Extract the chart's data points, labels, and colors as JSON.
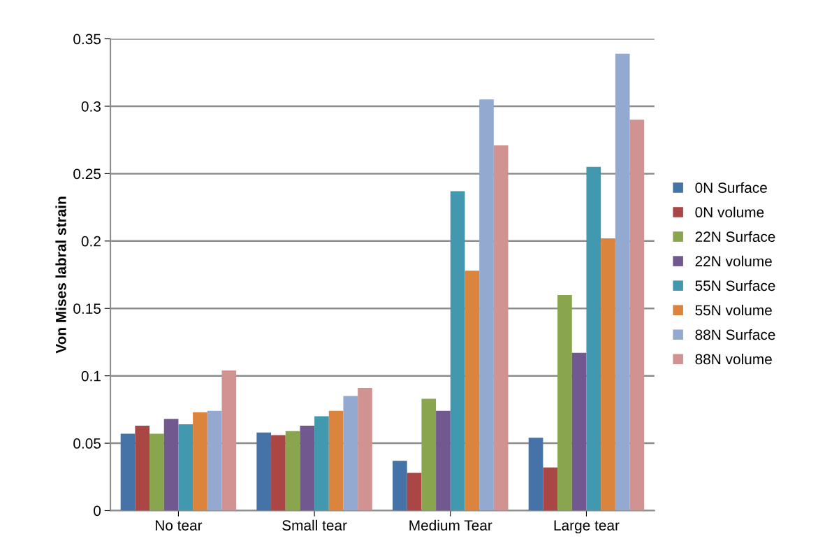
{
  "chart_data": {
    "type": "bar",
    "ylabel": "Von Mises labral strain",
    "categories": [
      "No tear",
      "Small tear",
      "Medium Tear",
      "Large tear"
    ],
    "series": [
      {
        "name": "0N Surface",
        "color": "#4572a7",
        "values": [
          0.057,
          0.058,
          0.037,
          0.054
        ]
      },
      {
        "name": "0N volume",
        "color": "#aa4643",
        "values": [
          0.063,
          0.056,
          0.028,
          0.032
        ]
      },
      {
        "name": "22N Surface",
        "color": "#89a54e",
        "values": [
          0.057,
          0.059,
          0.083,
          0.16
        ]
      },
      {
        "name": "22N volume",
        "color": "#71588f",
        "values": [
          0.068,
          0.063,
          0.074,
          0.117
        ]
      },
      {
        "name": "55N Surface",
        "color": "#4198af",
        "values": [
          0.064,
          0.07,
          0.237,
          0.255
        ]
      },
      {
        "name": "55N volume",
        "color": "#db843d",
        "values": [
          0.073,
          0.074,
          0.178,
          0.202
        ]
      },
      {
        "name": "88N Surface",
        "color": "#93a9cf",
        "values": [
          0.074,
          0.085,
          0.305,
          0.339
        ]
      },
      {
        "name": "88N volume",
        "color": "#d19392",
        "values": [
          0.104,
          0.091,
          0.271,
          0.29
        ]
      }
    ],
    "ylim": [
      0,
      0.35
    ],
    "yticks": [
      {
        "value": 0,
        "label": "0"
      },
      0.05,
      0.1,
      0.15,
      0.2,
      0.25,
      0.3,
      0.35
    ],
    "grid": "y",
    "legend": "right"
  }
}
